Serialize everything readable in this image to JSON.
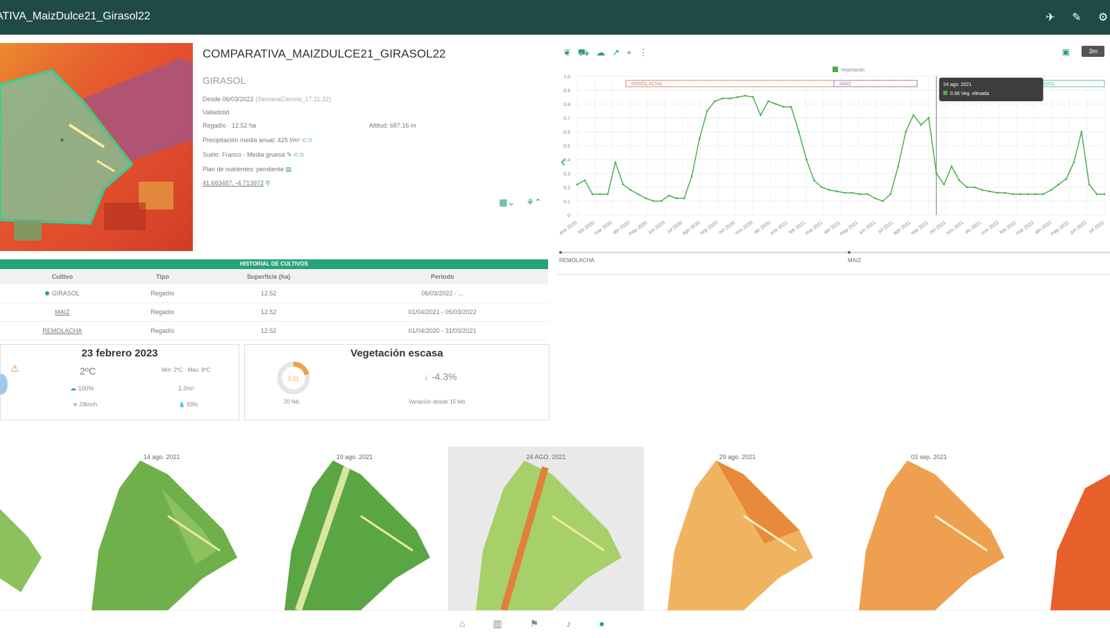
{
  "header": {
    "title": "ATIVA_MaizDulce21_Girasol22",
    "icons": [
      "route-icon",
      "edit-icon",
      "settings-icon"
    ]
  },
  "field": {
    "name": "COMPARATIVA_MAIZDULCE21_GIRASOL22",
    "crop": "GIRASOL",
    "since": "Desde 06/03/2022",
    "since_note": "(SemanaCiencia_17.11.22)",
    "location": "Valladolid",
    "irrigation": "Regadío · 12.52 ha",
    "altitude": "Altitud: 687.16 m",
    "precip": "Precipitación media anual: 425 l/m²",
    "soil": "Suelo: Franco - Media gruesa",
    "nutrients": "Plan de nutrientes: pendiente",
    "coords": "41.683487, -4.713972"
  },
  "chart_data": {
    "type": "line",
    "legend": "Vegetación",
    "ylim": [
      0,
      1
    ],
    "yticks": [
      "1.0",
      "0.9",
      "0.8",
      "0.7",
      "0.6",
      "0.5",
      "0.4",
      "0.3",
      "0.2",
      "0.1",
      "0"
    ],
    "xticks": [
      "ene 2020",
      "feb 2020",
      "mar 2020",
      "abr 2020",
      "may 2020",
      "jun 2020",
      "jul 2020",
      "ago 2020",
      "sep 2020",
      "oct 2020",
      "nov 2020",
      "dic 2020",
      "ene 2021",
      "feb 2021",
      "mar 2021",
      "abr 2021",
      "may 2021",
      "jun 2021",
      "jul 2021",
      "ago 2021",
      "sep 2021",
      "oct 2021",
      "nov 2021",
      "dic 2021",
      "ene 2022",
      "feb 2022",
      "mar 2022",
      "abr 2022",
      "may 2022",
      "jun 2022",
      "jul 2022"
    ],
    "bands": [
      "REMOLACHA",
      "MAIZ",
      "GIRASOL"
    ],
    "timeline": [
      "REMOLACHA",
      "MAIZ"
    ],
    "tooltip": {
      "date": "24 ago. 2021",
      "value": "0.56 Veg. elevada"
    },
    "series": [
      {
        "values": [
          0.22,
          0.25,
          0.15,
          0.15,
          0.15,
          0.38,
          0.22,
          0.18,
          0.15,
          0.12,
          0.1,
          0.1,
          0.14,
          0.12,
          0.12,
          0.28,
          0.55,
          0.75,
          0.82,
          0.84,
          0.84,
          0.85,
          0.86,
          0.85,
          0.72,
          0.82,
          0.8,
          0.78,
          0.78,
          0.6,
          0.4,
          0.25,
          0.2,
          0.18,
          0.17,
          0.16,
          0.16,
          0.15,
          0.15,
          0.12,
          0.1,
          0.15,
          0.35,
          0.6,
          0.72,
          0.65,
          0.7,
          0.3,
          0.22,
          0.35,
          0.25,
          0.2,
          0.2,
          0.18,
          0.17,
          0.16,
          0.16,
          0.15,
          0.15,
          0.15,
          0.15,
          0.15,
          0.18,
          0.22,
          0.26,
          0.38,
          0.6,
          0.22,
          0.15,
          0.15
        ]
      }
    ]
  },
  "history": {
    "title": "HISTORIAL DE CULTIVOS",
    "columns": [
      "Cultivo",
      "Tipo",
      "Superficie (ha)",
      "Periodo"
    ],
    "rows": [
      {
        "crop": "GIRASOL",
        "type": "Regadío",
        "area": "12.52",
        "period": "06/03/2022 - ..."
      },
      {
        "crop": "MAIZ",
        "type": "Regadío",
        "area": "12.52",
        "period": "01/04/2021 - 05/03/2022"
      },
      {
        "crop": "REMOLACHA",
        "type": "Regadío",
        "area": "12.52",
        "period": "01/04/2020 - 31/03/2021"
      }
    ]
  },
  "weather": {
    "date": "23 febrero 2023",
    "temp": "2ºC",
    "minmax": "Min: 2ºC · Max: 9ºC",
    "rain_prob": "100%",
    "rain_amount": "1.0m²",
    "wind": "23km/h",
    "humidity": "93%"
  },
  "vegetation": {
    "title": "Vegetación escasa",
    "value": "0.21",
    "days": "20 feb.",
    "change": "-4.3%",
    "change_note": "Variación desde 15 feb."
  },
  "thumbnails": {
    "dates": [
      "14 ago. 2021",
      "19 ago. 2021",
      "24 AGO. 2021",
      "29 ago. 2021",
      "03 sep. 2021"
    ],
    "selected": 2
  },
  "nav": [
    "home-icon",
    "map-icon",
    "flag-icon",
    "bell-icon",
    "user-icon"
  ]
}
